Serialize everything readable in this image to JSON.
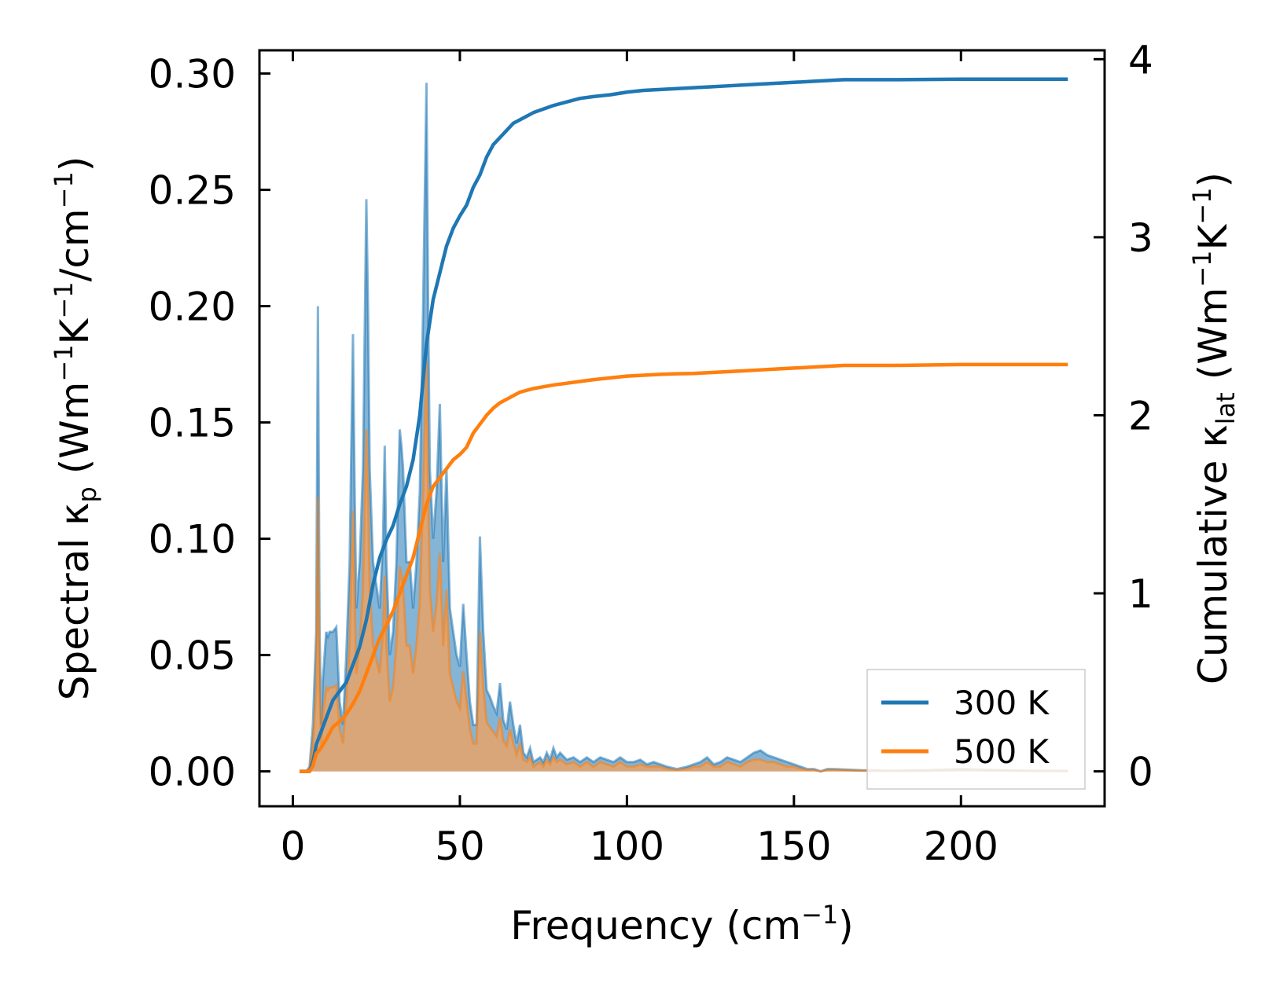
{
  "chart_data": {
    "type": "line",
    "xlabel": "Frequency (cm",
    "xlabel_sup": "−1",
    "xlabel_end": ")",
    "ylabel_left_parts": [
      "Spectral κ",
      "p",
      " (Wm",
      "−1",
      "K",
      "−1",
      "/cm",
      "−1",
      ")"
    ],
    "ylabel_right_parts": [
      "Cumulative κ",
      "lat",
      " (Wm",
      "−1",
      "K",
      "−1",
      ")"
    ],
    "xlim": [
      -10,
      243
    ],
    "ylim_left": [
      -0.015,
      0.31
    ],
    "ylim_right": [
      -0.196,
      4.05
    ],
    "x_ticks": [
      0,
      50,
      100,
      150,
      200
    ],
    "x_tick_labels": [
      "0",
      "50",
      "100",
      "150",
      "200"
    ],
    "y_left_ticks": [
      0.0,
      0.05,
      0.1,
      0.15,
      0.2,
      0.25,
      0.3
    ],
    "y_left_tick_labels": [
      "0.00",
      "0.05",
      "0.10",
      "0.15",
      "0.20",
      "0.25",
      "0.30"
    ],
    "y_right_ticks": [
      0,
      1,
      2,
      3,
      4
    ],
    "y_right_tick_labels": [
      "0",
      "1",
      "2",
      "3",
      "4"
    ],
    "legend": {
      "position": "lower right",
      "entries": [
        "300 K",
        "500 K"
      ]
    },
    "colors": {
      "s300": "#1f77b4",
      "s500": "#ff7f0e",
      "fill300": "#1f77b4",
      "fill500": "#f5a25a"
    },
    "spectral": [
      {
        "name": "300 K",
        "x": [
          2,
          4,
          5,
          6,
          7,
          7.5,
          8,
          8.5,
          9,
          10,
          10.5,
          11,
          12,
          13,
          14,
          15,
          16,
          17,
          18,
          18.5,
          19,
          20,
          21,
          22,
          22.5,
          23,
          24,
          25,
          26,
          27,
          27.5,
          28,
          29,
          30,
          31,
          32,
          32.5,
          33,
          34,
          35,
          36,
          37,
          38,
          39,
          40,
          40.5,
          41,
          42,
          43,
          44,
          45,
          46,
          47,
          48,
          49,
          50,
          51,
          52,
          53,
          54,
          55,
          56,
          57,
          58,
          59,
          60,
          61,
          62,
          63,
          64,
          65,
          66,
          67,
          68,
          69,
          70,
          71,
          72,
          73,
          74,
          75,
          76,
          77,
          78,
          79,
          80,
          82,
          84,
          86,
          88,
          90,
          92,
          94,
          96,
          98,
          100,
          102,
          104,
          106,
          108,
          110,
          112,
          115,
          118,
          120,
          122,
          124,
          126,
          128,
          130,
          132,
          134,
          136,
          138,
          140,
          142,
          144,
          146,
          148,
          150,
          152,
          154,
          156,
          158,
          160,
          162,
          165,
          170,
          180,
          190,
          200,
          210,
          220,
          232
        ],
        "y": [
          0,
          0,
          0.002,
          0.02,
          0.06,
          0.2,
          0.06,
          0.02,
          0.04,
          0.06,
          0.058,
          0.06,
          0.06,
          0.062,
          0.03,
          0.02,
          0.05,
          0.09,
          0.188,
          0.12,
          0.07,
          0.09,
          0.13,
          0.246,
          0.2,
          0.13,
          0.09,
          0.08,
          0.07,
          0.1,
          0.14,
          0.09,
          0.05,
          0.06,
          0.09,
          0.147,
          0.14,
          0.13,
          0.09,
          0.09,
          0.07,
          0.09,
          0.12,
          0.2,
          0.296,
          0.2,
          0.13,
          0.1,
          0.12,
          0.158,
          0.09,
          0.13,
          0.07,
          0.06,
          0.05,
          0.045,
          0.072,
          0.05,
          0.03,
          0.02,
          0.02,
          0.101,
          0.06,
          0.035,
          0.032,
          0.028,
          0.025,
          0.038,
          0.022,
          0.018,
          0.03,
          0.02,
          0.012,
          0.02,
          0.008,
          0.006,
          0.01,
          0.004,
          0.005,
          0.006,
          0.004,
          0.008,
          0.005,
          0.01,
          0.006,
          0.008,
          0.005,
          0.006,
          0.004,
          0.006,
          0.004,
          0.006,
          0.005,
          0.004,
          0.006,
          0.004,
          0.004,
          0.005,
          0.003,
          0.004,
          0.003,
          0.002,
          0.001,
          0.002,
          0.003,
          0.004,
          0.006,
          0.003,
          0.004,
          0.006,
          0.005,
          0.004,
          0.006,
          0.008,
          0.009,
          0.007,
          0.006,
          0.005,
          0.004,
          0.003,
          0.002,
          0.001,
          0.001,
          0,
          0.001,
          0.001,
          0.0008,
          0.0005,
          0.0003,
          0.0005,
          0.001,
          0.0006,
          0.0003,
          0.0002
        ]
      },
      {
        "name": "500 K",
        "x": [
          2,
          4,
          5,
          6,
          7,
          7.5,
          8,
          8.5,
          9,
          10,
          10.5,
          11,
          12,
          13,
          14,
          15,
          16,
          17,
          18,
          18.5,
          19,
          20,
          21,
          22,
          22.5,
          23,
          24,
          25,
          26,
          27,
          27.5,
          28,
          29,
          30,
          31,
          32,
          32.5,
          33,
          34,
          35,
          36,
          37,
          38,
          39,
          40,
          40.5,
          41,
          42,
          43,
          44,
          45,
          46,
          47,
          48,
          49,
          50,
          51,
          52,
          53,
          54,
          55,
          56,
          57,
          58,
          59,
          60,
          61,
          62,
          63,
          64,
          65,
          66,
          67,
          68,
          69,
          70,
          71,
          72,
          73,
          74,
          75,
          76,
          77,
          78,
          79,
          80,
          82,
          84,
          86,
          88,
          90,
          92,
          94,
          96,
          98,
          100,
          102,
          104,
          106,
          108,
          110,
          112,
          115,
          118,
          120,
          122,
          124,
          126,
          128,
          130,
          132,
          134,
          136,
          138,
          140,
          142,
          144,
          146,
          148,
          150,
          152,
          154,
          156,
          158,
          160,
          162,
          165,
          170,
          180,
          190,
          200,
          210,
          220,
          232
        ],
        "y": [
          0,
          0,
          0.001,
          0.012,
          0.035,
          0.118,
          0.035,
          0.012,
          0.024,
          0.036,
          0.035,
          0.036,
          0.036,
          0.037,
          0.018,
          0.012,
          0.03,
          0.054,
          0.112,
          0.072,
          0.042,
          0.054,
          0.078,
          0.147,
          0.12,
          0.078,
          0.054,
          0.048,
          0.042,
          0.06,
          0.084,
          0.054,
          0.03,
          0.036,
          0.054,
          0.088,
          0.084,
          0.078,
          0.054,
          0.054,
          0.042,
          0.054,
          0.072,
          0.12,
          0.176,
          0.12,
          0.078,
          0.06,
          0.072,
          0.094,
          0.054,
          0.078,
          0.042,
          0.036,
          0.03,
          0.027,
          0.043,
          0.03,
          0.018,
          0.012,
          0.012,
          0.06,
          0.036,
          0.021,
          0.019,
          0.017,
          0.015,
          0.023,
          0.013,
          0.011,
          0.018,
          0.012,
          0.007,
          0.012,
          0.005,
          0.004,
          0.006,
          0.002,
          0.003,
          0.004,
          0.002,
          0.005,
          0.003,
          0.006,
          0.004,
          0.005,
          0.003,
          0.004,
          0.002,
          0.004,
          0.002,
          0.004,
          0.003,
          0.002,
          0.004,
          0.002,
          0.002,
          0.003,
          0.002,
          0.002,
          0.002,
          0.001,
          0.0006,
          0.001,
          0.002,
          0.002,
          0.004,
          0.002,
          0.002,
          0.004,
          0.003,
          0.002,
          0.004,
          0.005,
          0.005,
          0.004,
          0.004,
          0.003,
          0.002,
          0.002,
          0.001,
          0.0006,
          0.0006,
          0,
          0.0006,
          0.0006,
          0.0005,
          0.0003,
          0.0002,
          0.0003,
          0.0006,
          0.0004,
          0.0002,
          0.0001
        ]
      }
    ],
    "cumulative": [
      {
        "name": "300 K",
        "x": [
          2,
          5,
          6,
          7,
          8,
          10,
          12,
          14,
          16,
          18,
          20,
          22,
          24,
          26,
          28,
          30,
          32,
          34,
          36,
          38,
          40,
          42,
          44,
          46,
          48,
          50,
          52,
          54,
          56,
          58,
          60,
          62,
          64,
          66,
          68,
          70,
          72,
          75,
          78,
          82,
          86,
          90,
          95,
          100,
          105,
          110,
          115,
          120,
          125,
          130,
          135,
          140,
          145,
          150,
          155,
          160,
          165,
          170,
          180,
          200,
          210,
          232
        ],
        "y": [
          0,
          0,
          0.05,
          0.15,
          0.2,
          0.3,
          0.4,
          0.45,
          0.5,
          0.6,
          0.7,
          0.85,
          1.05,
          1.2,
          1.3,
          1.38,
          1.5,
          1.6,
          1.75,
          2.0,
          2.4,
          2.65,
          2.8,
          2.95,
          3.05,
          3.12,
          3.18,
          3.28,
          3.35,
          3.45,
          3.52,
          3.56,
          3.6,
          3.64,
          3.66,
          3.68,
          3.7,
          3.72,
          3.74,
          3.76,
          3.78,
          3.79,
          3.8,
          3.815,
          3.825,
          3.83,
          3.835,
          3.84,
          3.845,
          3.85,
          3.855,
          3.86,
          3.865,
          3.87,
          3.875,
          3.88,
          3.885,
          3.885,
          3.885,
          3.888,
          3.888,
          3.888
        ]
      },
      {
        "name": "500 K",
        "x": [
          2,
          5,
          6,
          7,
          8,
          10,
          12,
          14,
          16,
          18,
          20,
          22,
          24,
          26,
          28,
          30,
          32,
          34,
          36,
          38,
          40,
          42,
          44,
          46,
          48,
          50,
          52,
          54,
          56,
          58,
          60,
          62,
          64,
          66,
          68,
          70,
          72,
          75,
          78,
          82,
          86,
          90,
          95,
          100,
          105,
          110,
          115,
          120,
          125,
          130,
          135,
          140,
          145,
          150,
          155,
          160,
          165,
          170,
          180,
          200,
          210,
          232
        ],
        "y": [
          0,
          0,
          0.03,
          0.1,
          0.12,
          0.18,
          0.25,
          0.28,
          0.32,
          0.38,
          0.45,
          0.55,
          0.65,
          0.75,
          0.82,
          0.9,
          1.0,
          1.1,
          1.2,
          1.35,
          1.5,
          1.6,
          1.65,
          1.7,
          1.75,
          1.78,
          1.82,
          1.9,
          1.95,
          2.0,
          2.04,
          2.07,
          2.09,
          2.11,
          2.13,
          2.14,
          2.15,
          2.16,
          2.17,
          2.18,
          2.19,
          2.2,
          2.21,
          2.22,
          2.225,
          2.23,
          2.233,
          2.235,
          2.24,
          2.245,
          2.25,
          2.255,
          2.26,
          2.265,
          2.27,
          2.275,
          2.28,
          2.28,
          2.28,
          2.285,
          2.285,
          2.285
        ]
      }
    ]
  }
}
